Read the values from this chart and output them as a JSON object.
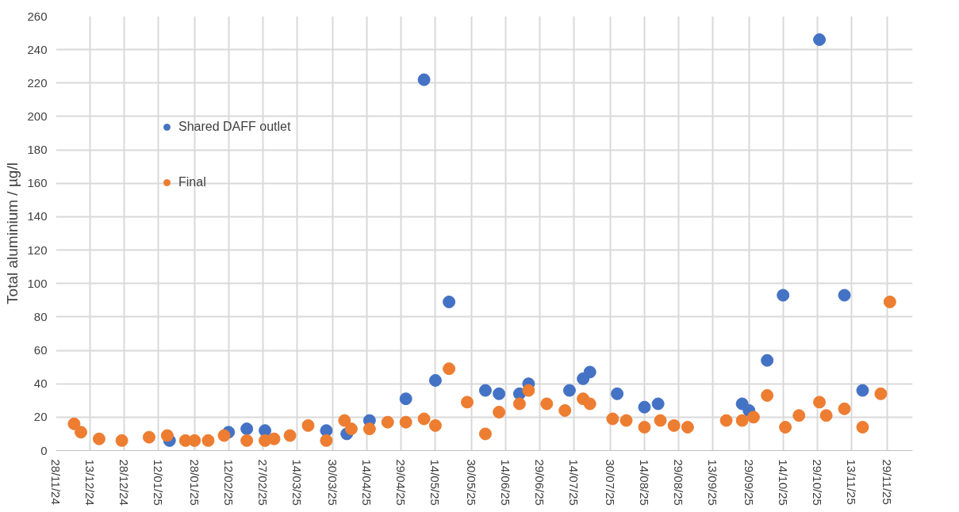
{
  "chart_data": {
    "type": "scatter",
    "ylabel": "Total aluminium / µg/l",
    "marker": "circle",
    "grid": true,
    "legend": "top left",
    "xlim": [
      "2024-11-28",
      "2025-12-10"
    ],
    "xticks": [
      {
        "value": "2024-11-28",
        "label": "28/11/24"
      },
      {
        "value": "2024-12-13",
        "label": "13/12/24"
      },
      {
        "value": "2024-12-28",
        "label": "28/12/24"
      },
      {
        "value": "2025-01-12",
        "label": "12/01/25"
      },
      {
        "value": "2025-01-28",
        "label": "28/01/25"
      },
      {
        "value": "2025-02-12",
        "label": "12/02/25"
      },
      {
        "value": "2025-02-27",
        "label": "27/02/25"
      },
      {
        "value": "2025-03-14",
        "label": "14/03/25"
      },
      {
        "value": "2025-03-30",
        "label": "30/03/25"
      },
      {
        "value": "2025-04-14",
        "label": "14/04/25"
      },
      {
        "value": "2025-04-29",
        "label": "29/04/25"
      },
      {
        "value": "2025-05-14",
        "label": "14/05/25"
      },
      {
        "value": "2025-05-30",
        "label": "30/05/25"
      },
      {
        "value": "2025-06-14",
        "label": "14/06/25"
      },
      {
        "value": "2025-06-29",
        "label": "29/06/25"
      },
      {
        "value": "2025-07-14",
        "label": "14/07/25"
      },
      {
        "value": "2025-07-30",
        "label": "30/07/25"
      },
      {
        "value": "2025-08-14",
        "label": "14/08/25"
      },
      {
        "value": "2025-08-29",
        "label": "29/08/25"
      },
      {
        "value": "2025-09-13",
        "label": "13/09/25"
      },
      {
        "value": "2025-09-29",
        "label": "29/09/25"
      },
      {
        "value": "2025-10-14",
        "label": "14/10/25"
      },
      {
        "value": "2025-10-29",
        "label": "29/10/25"
      },
      {
        "value": "2025-11-13",
        "label": "13/11/25"
      },
      {
        "value": "2025-11-29",
        "label": "29/11/25"
      }
    ],
    "ylim": [
      0,
      260
    ],
    "yticks": [
      0,
      20,
      40,
      60,
      80,
      100,
      120,
      140,
      160,
      180,
      200,
      220,
      240,
      260
    ],
    "series": [
      {
        "name": "Shared DAFF outlet",
        "color": "#4472c4",
        "x": [
          "2025-01-17",
          "2025-02-12",
          "2025-02-20",
          "2025-02-28",
          "2025-03-27",
          "2025-04-05",
          "2025-04-15",
          "2025-05-01",
          "2025-05-09",
          "2025-05-14",
          "2025-05-20",
          "2025-06-05",
          "2025-06-11",
          "2025-06-20",
          "2025-06-24",
          "2025-07-12",
          "2025-07-18",
          "2025-07-21",
          "2025-08-02",
          "2025-08-14",
          "2025-08-20",
          "2025-09-26",
          "2025-09-29",
          "2025-10-07",
          "2025-10-14",
          "2025-10-30",
          "2025-11-10",
          "2025-11-18"
        ],
        "values": [
          6,
          11,
          13,
          12,
          12,
          10,
          18,
          31,
          222,
          42,
          89,
          36,
          34,
          34,
          40,
          36,
          43,
          47,
          34,
          26,
          28,
          28,
          24,
          54,
          93,
          246,
          93,
          36
        ]
      },
      {
        "name": "Final",
        "color": "#ed7d31",
        "x": [
          "2024-12-06",
          "2024-12-09",
          "2024-12-17",
          "2024-12-27",
          "2025-01-08",
          "2025-01-16",
          "2025-01-24",
          "2025-01-28",
          "2025-02-03",
          "2025-02-10",
          "2025-02-20",
          "2025-02-28",
          "2025-03-04",
          "2025-03-11",
          "2025-03-19",
          "2025-03-27",
          "2025-04-04",
          "2025-04-07",
          "2025-04-15",
          "2025-04-23",
          "2025-05-01",
          "2025-05-09",
          "2025-05-14",
          "2025-05-20",
          "2025-05-28",
          "2025-06-05",
          "2025-06-11",
          "2025-06-20",
          "2025-06-24",
          "2025-07-02",
          "2025-07-10",
          "2025-07-18",
          "2025-07-21",
          "2025-07-31",
          "2025-08-06",
          "2025-08-14",
          "2025-08-21",
          "2025-08-27",
          "2025-09-02",
          "2025-09-19",
          "2025-09-26",
          "2025-10-01",
          "2025-10-07",
          "2025-10-15",
          "2025-10-21",
          "2025-10-30",
          "2025-11-02",
          "2025-11-10",
          "2025-11-18",
          "2025-11-26",
          "2025-11-30"
        ],
        "values": [
          16,
          11,
          7,
          6,
          8,
          9,
          6,
          6,
          6,
          9,
          6,
          6,
          7,
          9,
          15,
          6,
          18,
          13,
          13,
          17,
          17,
          19,
          15,
          49,
          29,
          10,
          23,
          28,
          36,
          28,
          24,
          31,
          28,
          19,
          18,
          14,
          18,
          15,
          14,
          18,
          18,
          20,
          33,
          14,
          21,
          29,
          21,
          25,
          14,
          34,
          89
        ]
      }
    ]
  }
}
